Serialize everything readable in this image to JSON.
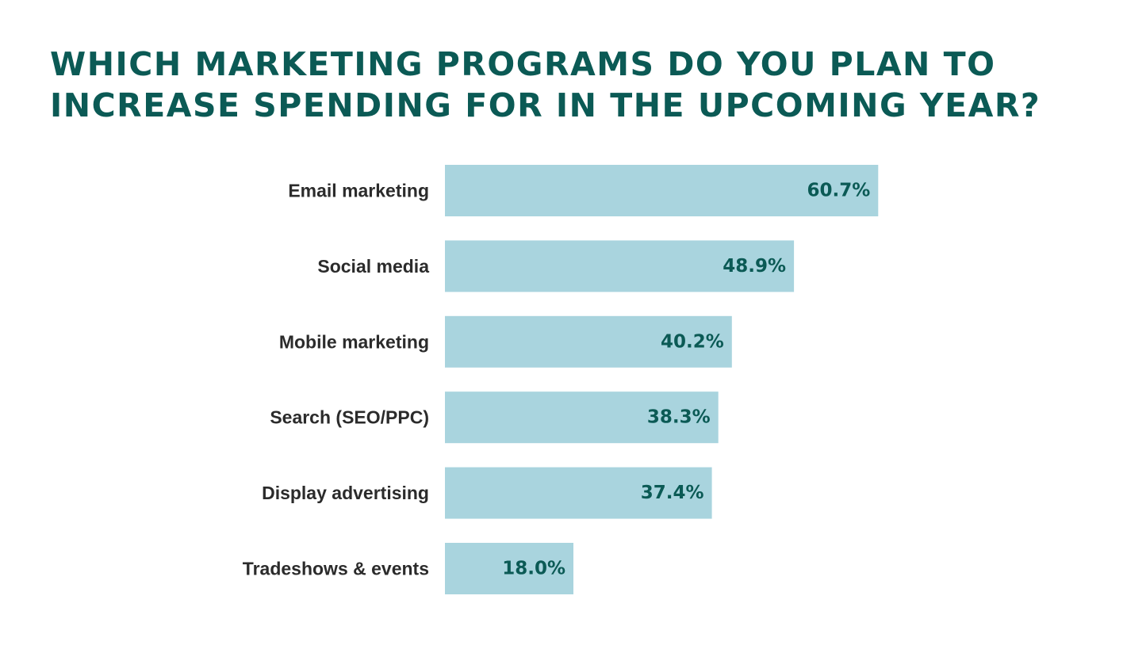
{
  "chart_data": {
    "type": "bar",
    "orientation": "horizontal",
    "title": "WHICH MARKETING PROGRAMS DO YOU PLAN TO INCREASE SPENDING FOR IN THE UPCOMING YEAR?",
    "categories": [
      "Email marketing",
      "Social media",
      "Mobile marketing",
      "Search (SEO/PPC)",
      "Display advertising",
      "Tradeshows & events"
    ],
    "values": [
      60.7,
      48.9,
      40.2,
      38.3,
      37.4,
      18.0
    ],
    "value_labels": [
      "60.7%",
      "48.9%",
      "40.2%",
      "38.3%",
      "37.4%",
      "18.0%"
    ],
    "unit": "%",
    "xlim": [
      0,
      100
    ],
    "grid": false,
    "legend": "none"
  },
  "colors": {
    "bar": "#a9d4de",
    "title": "#0b5a55",
    "value_label": "#0b5a55",
    "category_label": "#2b2b2b"
  }
}
